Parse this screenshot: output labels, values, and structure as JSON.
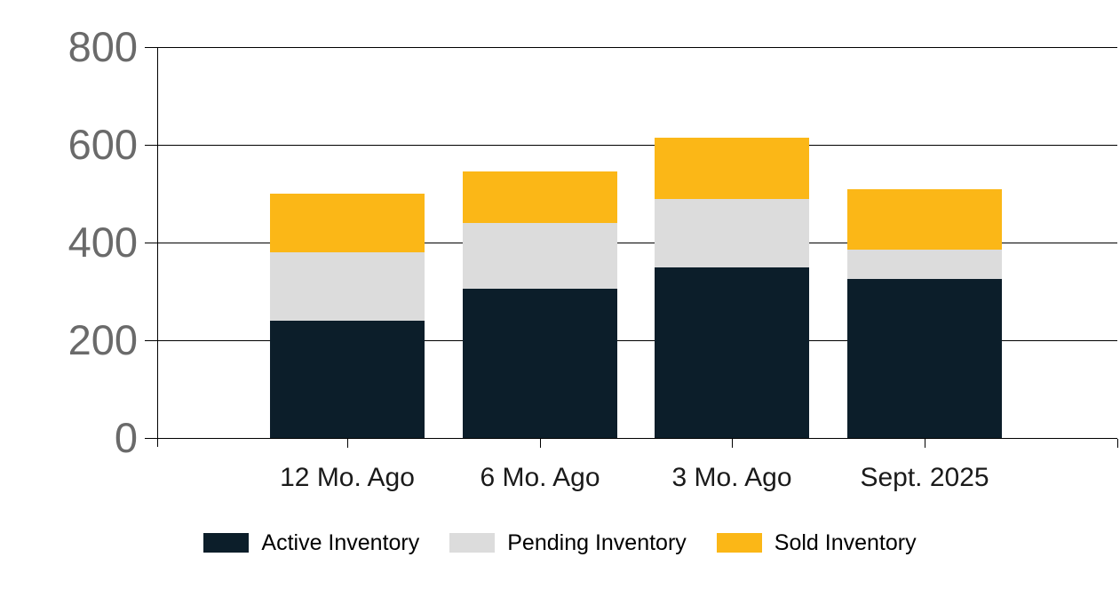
{
  "chart_data": {
    "type": "bar",
    "stacked": true,
    "title": "",
    "xlabel": "",
    "ylabel": "",
    "categories": [
      "12 Mo. Ago",
      "6 Mo. Ago",
      "3 Mo. Ago",
      "Sept. 2025"
    ],
    "series": [
      {
        "name": "Active Inventory",
        "color": "#0c1e2a",
        "values": [
          240,
          305,
          350,
          325
        ]
      },
      {
        "name": "Pending Inventory",
        "color": "#dcdcdc",
        "values": [
          140,
          135,
          140,
          60
        ]
      },
      {
        "name": "Sold Inventory",
        "color": "#fbb717",
        "values": [
          120,
          105,
          125,
          125
        ]
      }
    ],
    "totals": [
      500,
      545,
      615,
      510
    ],
    "ylim": [
      0,
      800
    ],
    "yticks": [
      0,
      200,
      400,
      600,
      800
    ],
    "ytick_labels": [
      "0",
      "200",
      "400",
      "600",
      "800"
    ],
    "grid": true,
    "legend_position": "bottom",
    "colors": {
      "background": "#ffffff",
      "axis": "#000000",
      "gridline": "#000000",
      "ytick_label": "#6a6a6a",
      "xtick_label": "#1a1a1a",
      "legend_text": "#000000"
    }
  }
}
